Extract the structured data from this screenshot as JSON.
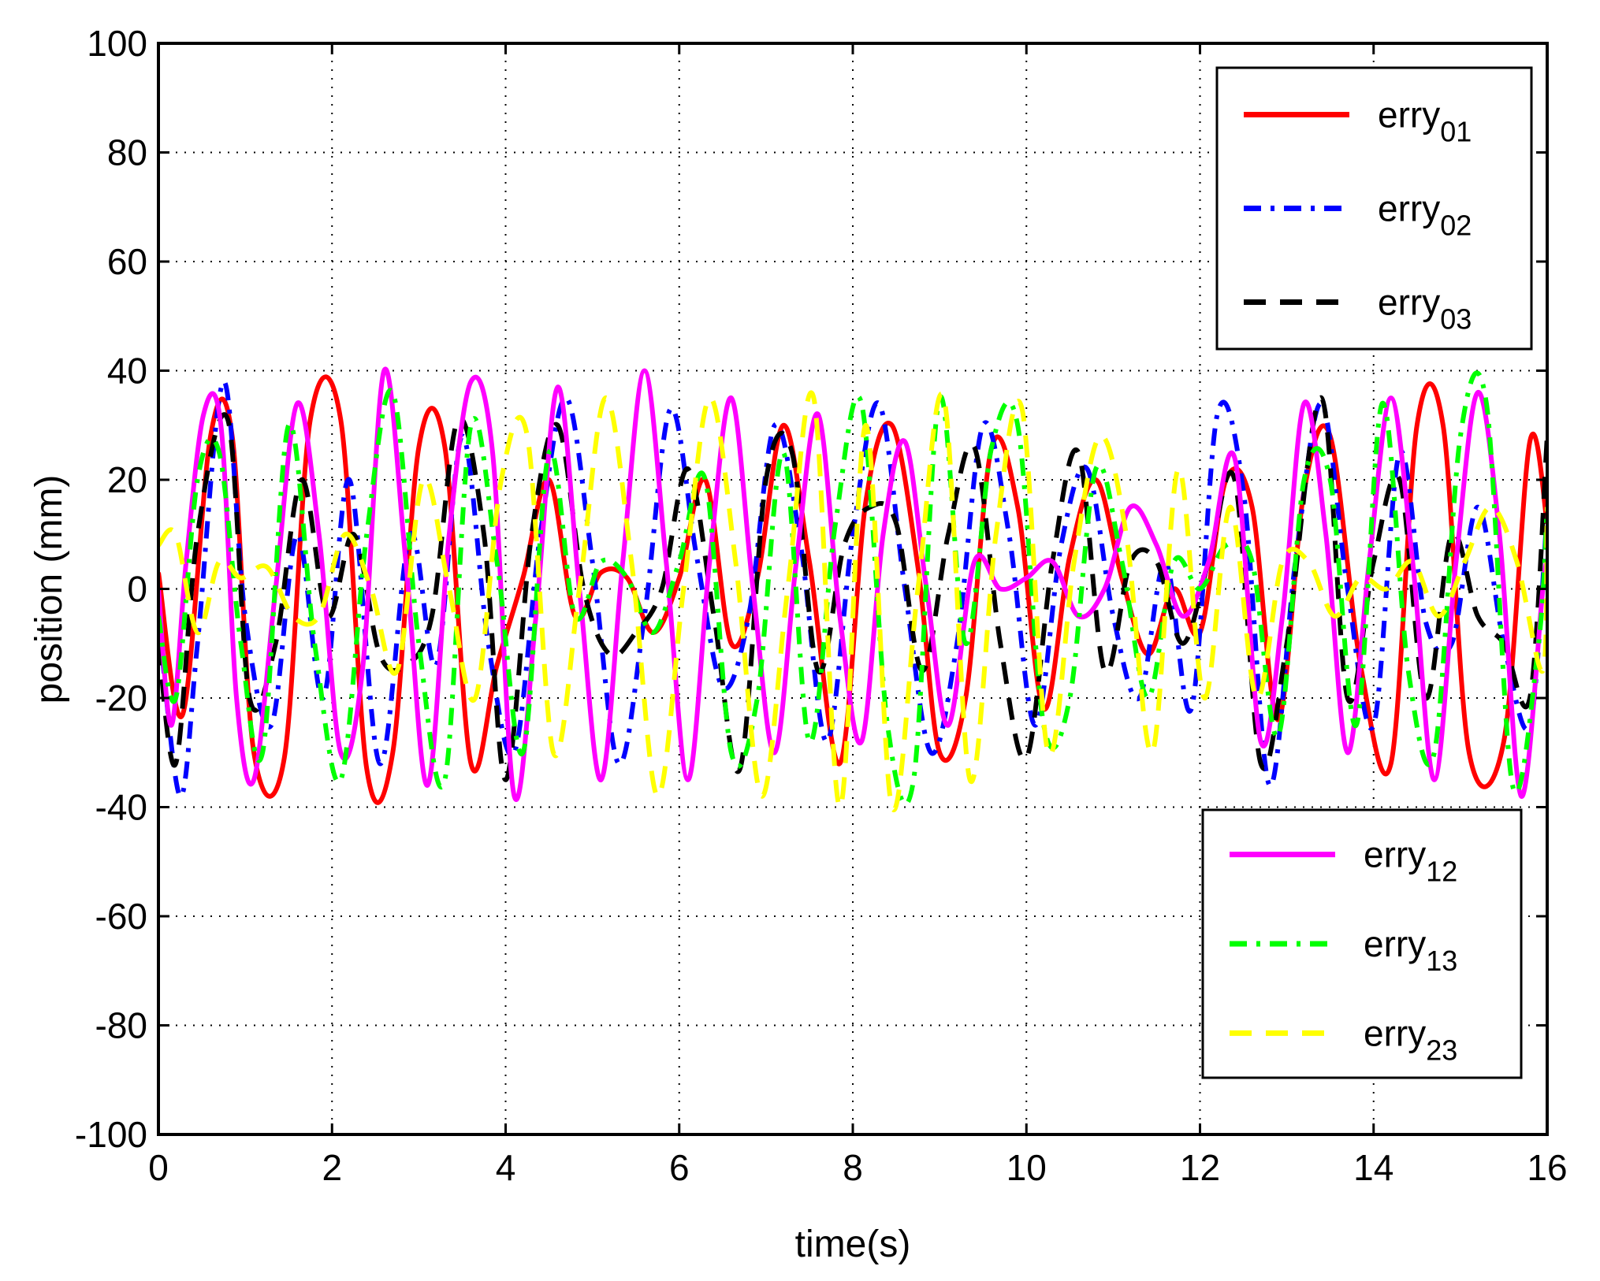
{
  "chart_data": {
    "type": "line",
    "xlabel": "time(s)",
    "ylabel": "position (mm)",
    "xlim": [
      0,
      16
    ],
    "ylim": [
      -100,
      100
    ],
    "xticks": [
      "0",
      "2",
      "4",
      "6",
      "8",
      "10",
      "12",
      "14",
      "16"
    ],
    "yticks": [
      "100",
      "80",
      "60",
      "40",
      "20",
      "0",
      "-20",
      "-40",
      "-60",
      "-80",
      "-100"
    ],
    "grid": true,
    "legends": [
      {
        "placement": "top-right",
        "entries": [
          0,
          1,
          2
        ]
      },
      {
        "placement": "bottom-right",
        "entries": [
          3,
          4,
          5
        ]
      }
    ],
    "series": [
      {
        "name": "erry01",
        "label_base": "erry",
        "label_sub": "01",
        "color": "#ff0000",
        "style": "solid",
        "x": [
          0,
          0.28,
          0.6,
          0.85,
          1.1,
          1.45,
          1.75,
          2.1,
          2.4,
          2.7,
          3.0,
          3.3,
          3.6,
          3.9,
          4.2,
          4.5,
          4.8,
          5.1,
          5.4,
          5.7,
          6.0,
          6.3,
          6.6,
          6.9,
          7.2,
          7.5,
          7.85,
          8.15,
          8.45,
          8.75,
          9.0,
          9.3,
          9.6,
          9.9,
          10.2,
          10.5,
          10.8,
          11.1,
          11.4,
          11.7,
          12.0,
          12.3,
          12.6,
          12.9,
          13.2,
          13.5,
          13.85,
          14.2,
          14.5,
          14.8,
          15.1,
          15.5,
          15.8,
          16.0
        ],
        "y": [
          3,
          -23,
          28,
          28,
          -30,
          -31,
          31,
          31,
          -33,
          -30,
          26,
          26,
          -32,
          -14,
          2,
          20,
          -5,
          3,
          2,
          -8,
          2,
          20,
          -10,
          2,
          30,
          5,
          -32,
          16,
          30,
          4,
          -30,
          -20,
          26,
          15,
          -22,
          6,
          20,
          2,
          -12,
          0,
          -8,
          20,
          15,
          -24,
          18,
          28,
          -14,
          -32,
          30,
          30,
          -30,
          -28,
          27,
          12
        ]
      },
      {
        "name": "erry02",
        "label_base": "erry",
        "label_sub": "02",
        "color": "#0000ff",
        "style": "dashdot",
        "x": [
          0,
          0.25,
          0.45,
          0.75,
          1.0,
          1.3,
          1.6,
          1.9,
          2.2,
          2.55,
          2.9,
          3.2,
          3.5,
          3.8,
          4.1,
          4.4,
          4.7,
          5.0,
          5.3,
          5.6,
          5.9,
          6.2,
          6.5,
          6.8,
          7.1,
          7.4,
          7.7,
          8.0,
          8.3,
          8.6,
          8.9,
          9.2,
          9.5,
          9.8,
          10.1,
          10.4,
          10.7,
          11.0,
          11.3,
          11.6,
          11.9,
          12.2,
          12.5,
          12.8,
          13.1,
          13.4,
          13.7,
          14.0,
          14.3,
          14.6,
          14.9,
          15.2,
          15.5,
          15.8,
          16.0
        ],
        "y": [
          -5,
          -38,
          -10,
          38,
          -5,
          -25,
          10,
          -20,
          20,
          -32,
          10,
          -14,
          28,
          -10,
          -30,
          10,
          35,
          5,
          -32,
          -5,
          33,
          6,
          -18,
          -5,
          30,
          8,
          -28,
          10,
          34,
          0,
          -30,
          -10,
          30,
          10,
          -25,
          8,
          22,
          -5,
          -20,
          5,
          -22,
          32,
          18,
          -36,
          5,
          34,
          0,
          -25,
          25,
          -6,
          -10,
          15,
          -10,
          -25,
          14
        ]
      },
      {
        "name": "erry03",
        "label_base": "erry",
        "label_sub": "03",
        "color": "#000000",
        "style": "dashed",
        "x": [
          0,
          0.2,
          0.45,
          0.8,
          1.05,
          1.35,
          1.65,
          1.95,
          2.25,
          2.55,
          2.85,
          3.15,
          3.45,
          3.75,
          4.0,
          4.3,
          4.6,
          4.9,
          5.2,
          5.5,
          5.8,
          6.1,
          6.4,
          6.7,
          7.0,
          7.3,
          7.6,
          7.9,
          8.2,
          8.5,
          8.8,
          9.1,
          9.4,
          9.7,
          10.0,
          10.3,
          10.6,
          10.9,
          11.2,
          11.5,
          11.8,
          12.1,
          12.4,
          12.7,
          13.0,
          13.4,
          13.7,
          14.0,
          14.3,
          14.6,
          14.9,
          15.2,
          15.5,
          15.8,
          16.0
        ],
        "y": [
          -10,
          -32,
          10,
          31,
          -20,
          -10,
          20,
          -5,
          10,
          -12,
          -14,
          -5,
          31,
          10,
          -35,
          10,
          30,
          0,
          -12,
          -8,
          0,
          22,
          -5,
          -33,
          20,
          25,
          -15,
          8,
          15,
          12,
          -15,
          10,
          26,
          -10,
          -31,
          5,
          25,
          -15,
          5,
          5,
          -10,
          5,
          20,
          -32,
          -10,
          35,
          -20,
          5,
          20,
          -20,
          10,
          -5,
          -10,
          -20,
          28
        ]
      },
      {
        "name": "erry12",
        "label_base": "erry",
        "label_sub": "12",
        "color": "#ff00ff",
        "style": "solid",
        "x": [
          0,
          0.15,
          0.32,
          0.52,
          0.72,
          0.9,
          1.1,
          1.35,
          1.6,
          1.85,
          2.1,
          2.35,
          2.6,
          2.85,
          3.1,
          3.35,
          3.6,
          3.85,
          4.1,
          4.35,
          4.6,
          4.85,
          5.1,
          5.35,
          5.6,
          5.85,
          6.1,
          6.35,
          6.6,
          6.85,
          7.1,
          7.35,
          7.6,
          7.85,
          8.1,
          8.35,
          8.6,
          8.85,
          9.1,
          9.4,
          9.7,
          10.0,
          10.3,
          10.6,
          10.9,
          11.2,
          11.5,
          11.8,
          12.1,
          12.4,
          12.7,
          12.95,
          13.2,
          13.45,
          13.7,
          13.95,
          14.2,
          14.45,
          14.7,
          14.95,
          15.2,
          15.45,
          15.7,
          15.95,
          16.0
        ],
        "y": [
          0,
          -25,
          5,
          32,
          30,
          -20,
          -35,
          0,
          34,
          10,
          -30,
          -15,
          40,
          5,
          -36,
          10,
          38,
          25,
          -38,
          -5,
          37,
          0,
          -35,
          5,
          40,
          5,
          -35,
          5,
          35,
          0,
          -30,
          5,
          32,
          -5,
          -28,
          10,
          27,
          0,
          -25,
          5,
          0,
          2,
          5,
          -5,
          0,
          15,
          8,
          -5,
          5,
          24,
          -28,
          -5,
          34,
          10,
          -30,
          5,
          35,
          5,
          -35,
          5,
          36,
          10,
          -38,
          0,
          5
        ]
      },
      {
        "name": "erry13",
        "label_base": "erry",
        "label_sub": "13",
        "color": "#00ff00",
        "style": "dashdot",
        "x": [
          0,
          0.2,
          0.45,
          0.7,
          0.95,
          1.2,
          1.5,
          1.8,
          2.1,
          2.4,
          2.7,
          3.0,
          3.3,
          3.6,
          3.9,
          4.2,
          4.5,
          4.8,
          5.1,
          5.4,
          5.7,
          6.0,
          6.3,
          6.6,
          6.9,
          7.2,
          7.5,
          7.8,
          8.1,
          8.4,
          8.7,
          9.0,
          9.3,
          9.6,
          9.9,
          10.2,
          10.5,
          10.8,
          11.1,
          11.4,
          11.7,
          12.0,
          12.3,
          12.6,
          12.9,
          13.2,
          13.5,
          13.8,
          14.1,
          14.4,
          14.7,
          15.0,
          15.3,
          15.6,
          15.9,
          16.0
        ],
        "y": [
          -5,
          -20,
          20,
          25,
          -10,
          -30,
          30,
          -10,
          -35,
          10,
          36,
          -10,
          -35,
          30,
          5,
          -30,
          25,
          -5,
          5,
          2,
          -8,
          5,
          20,
          -30,
          -20,
          25,
          -28,
          12,
          34,
          -25,
          -35,
          35,
          -10,
          26,
          30,
          -25,
          -20,
          22,
          5,
          -20,
          5,
          0,
          8,
          5,
          -27,
          20,
          20,
          -25,
          34,
          -15,
          -30,
          28,
          34,
          -36,
          -10,
          15
        ]
      },
      {
        "name": "erry23",
        "label_base": "erry",
        "label_sub": "23",
        "color": "#ffff00",
        "style": "dashed",
        "x": [
          0,
          0.2,
          0.45,
          0.7,
          0.95,
          1.25,
          1.55,
          1.85,
          2.15,
          2.45,
          2.75,
          3.05,
          3.35,
          3.65,
          3.95,
          4.25,
          4.55,
          4.85,
          5.15,
          5.45,
          5.75,
          6.05,
          6.35,
          6.65,
          6.95,
          7.25,
          7.55,
          7.85,
          8.15,
          8.45,
          8.75,
          9.05,
          9.35,
          9.65,
          9.95,
          10.25,
          10.55,
          10.85,
          11.15,
          11.45,
          11.75,
          12.05,
          12.35,
          12.65,
          12.95,
          13.25,
          13.55,
          13.85,
          14.15,
          14.45,
          14.75,
          15.05,
          15.35,
          15.65,
          15.95,
          16.0
        ],
        "y": [
          8,
          10,
          -8,
          5,
          2,
          4,
          -5,
          -5,
          10,
          0,
          -15,
          20,
          0,
          -20,
          20,
          28,
          -30,
          0,
          35,
          5,
          -38,
          0,
          35,
          5,
          -38,
          0,
          35,
          -40,
          30,
          -40,
          0,
          35,
          -35,
          10,
          33,
          -30,
          5,
          28,
          10,
          -30,
          22,
          -20,
          15,
          -20,
          5,
          5,
          -5,
          2,
          0,
          5,
          -5,
          5,
          15,
          5,
          -15,
          15
        ]
      }
    ]
  }
}
